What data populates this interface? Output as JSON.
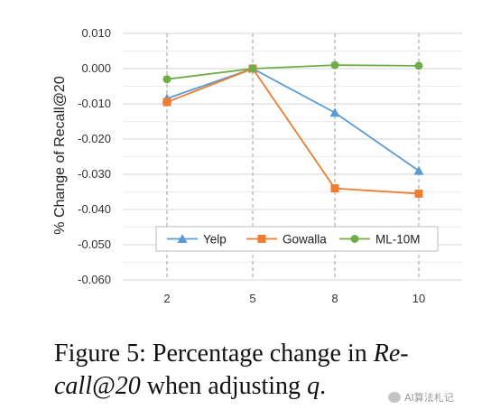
{
  "chart_data": {
    "type": "line",
    "categories": [
      "2",
      "5",
      "8",
      "10"
    ],
    "ylabel": "% Change of Recall@20",
    "xlabel": "",
    "ylim": [
      -0.06,
      0.01
    ],
    "yticks": [
      "0.010",
      "0.000",
      "-0.010",
      "-0.020",
      "-0.030",
      "-0.040",
      "-0.050",
      "-0.060"
    ],
    "grid": true,
    "legend_position": "bottom-center",
    "series": [
      {
        "name": "Yelp",
        "values": [
          -0.0085,
          0.0,
          -0.0125,
          -0.029
        ],
        "color": "#5b9bd5",
        "marker": "triangle"
      },
      {
        "name": "Gowalla",
        "values": [
          -0.0095,
          0.0,
          -0.034,
          -0.0355
        ],
        "color": "#ed7d31",
        "marker": "square"
      },
      {
        "name": "ML-10M",
        "values": [
          -0.003,
          0.0,
          0.001,
          0.0008
        ],
        "color": "#70ad47",
        "marker": "circle"
      }
    ]
  },
  "caption": {
    "part1": "Figure 5: Percentage change in ",
    "part2": "Re-call@20",
    "part3": " when adjusting ",
    "part4": "q",
    "part5": "."
  },
  "watermark": "AI算法札记"
}
